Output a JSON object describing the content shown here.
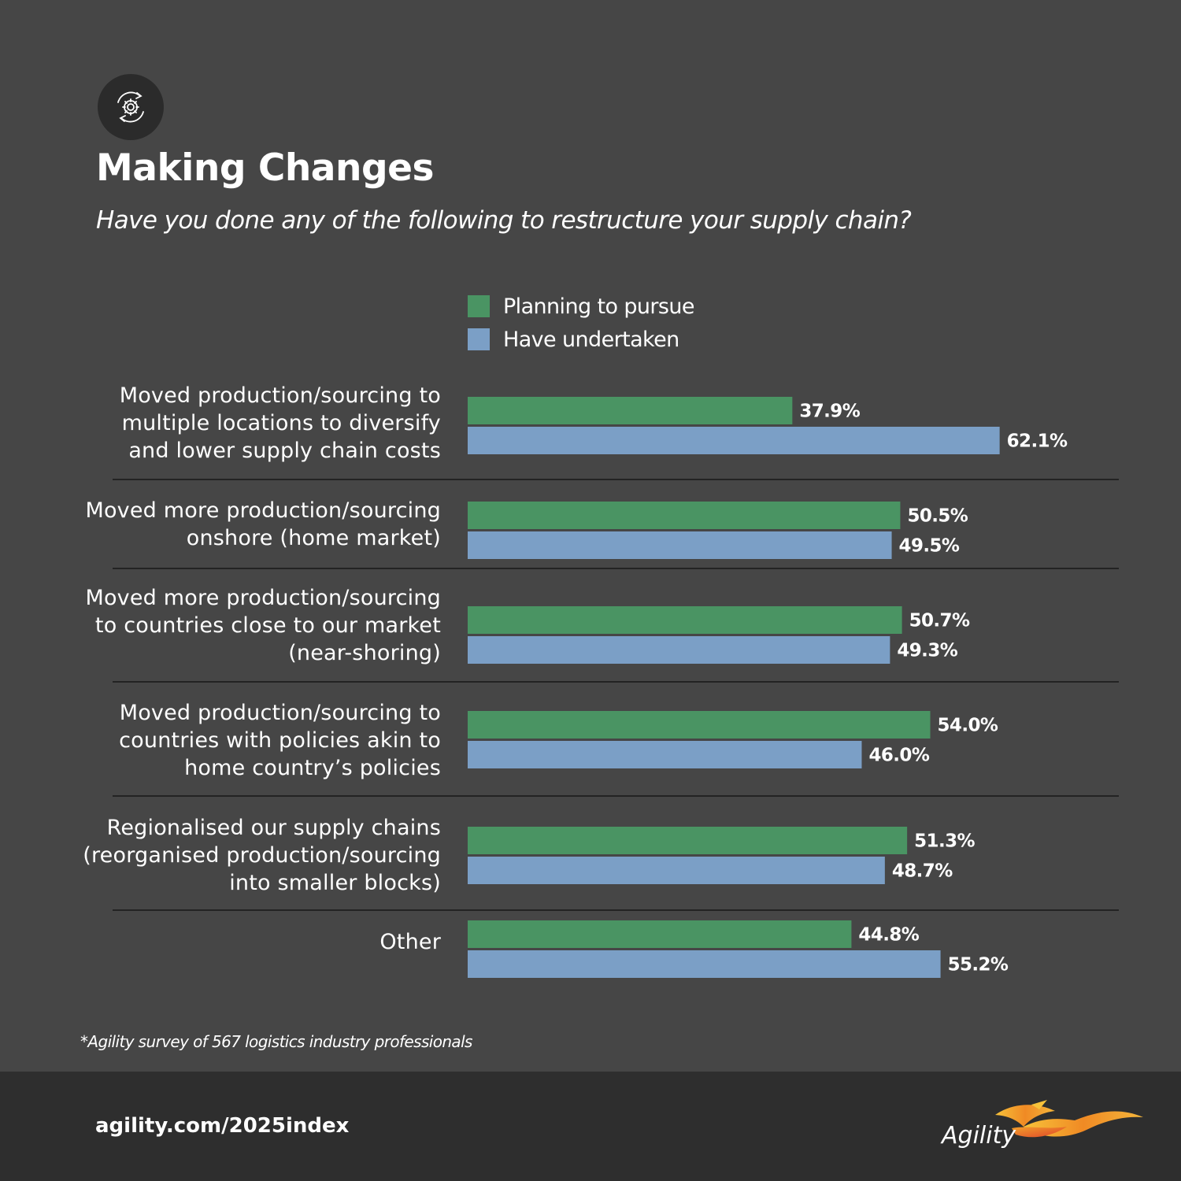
{
  "header": {
    "icon": "gear-refresh-icon",
    "title": "Making Changes",
    "subtitle": "Have you done any of the following to restructure your supply chain?"
  },
  "legend": {
    "items": [
      {
        "label": "Planning to pursue",
        "color": "#4a9463"
      },
      {
        "label": "Have undertaken",
        "color": "#7b9fc6"
      }
    ]
  },
  "chart_data": {
    "type": "bar",
    "orientation": "horizontal",
    "title": "Making Changes",
    "subtitle": "Have you done any of the following to restructure your supply chain?",
    "categories": [
      "Moved production/sourcing to multiple locations to diversify and lower supply chain costs",
      "Moved more production/sourcing onshore (home market)",
      "Moved more production/sourcing to countries close to our market (near-shoring)",
      "Moved production/sourcing to countries with policies akin to home country’s policies",
      "Regionalised our supply chains (reorganised production/sourcing into smaller blocks)",
      "Other"
    ],
    "category_lines": [
      [
        "Moved production/sourcing to",
        "multiple locations to diversify",
        "and lower supply chain costs"
      ],
      [
        "Moved more production/sourcing",
        "onshore (home market)"
      ],
      [
        "Moved more production/sourcing",
        "to countries close to our market",
        "(near-shoring)"
      ],
      [
        "Moved production/sourcing to",
        "countries with policies akin to",
        "home country’s policies"
      ],
      [
        "Regionalised our supply chains",
        "(reorganised production/sourcing",
        "into smaller blocks)"
      ],
      [
        "Other"
      ]
    ],
    "series": [
      {
        "name": "Planning to pursue",
        "color": "#4a9463",
        "values": [
          37.9,
          50.5,
          50.7,
          54.0,
          51.3,
          44.8
        ],
        "labels": [
          "37.9%",
          "50.5%",
          "50.7%",
          "54.0%",
          "51.3%",
          "44.8%"
        ]
      },
      {
        "name": "Have undertaken",
        "color": "#7b9fc6",
        "values": [
          62.1,
          49.5,
          49.3,
          46.0,
          48.7,
          55.2
        ],
        "labels": [
          "62.1%",
          "49.5%",
          "49.3%",
          "46.0%",
          "48.7%",
          "55.2%"
        ]
      }
    ],
    "unit": "%",
    "xlim": [
      0,
      100
    ],
    "grid": false,
    "legend_position": "top"
  },
  "footnote": "*Agility survey of 567 logistics industry professionals",
  "footer": {
    "url": "agility.com/2025index",
    "logo_text": "Agility"
  }
}
